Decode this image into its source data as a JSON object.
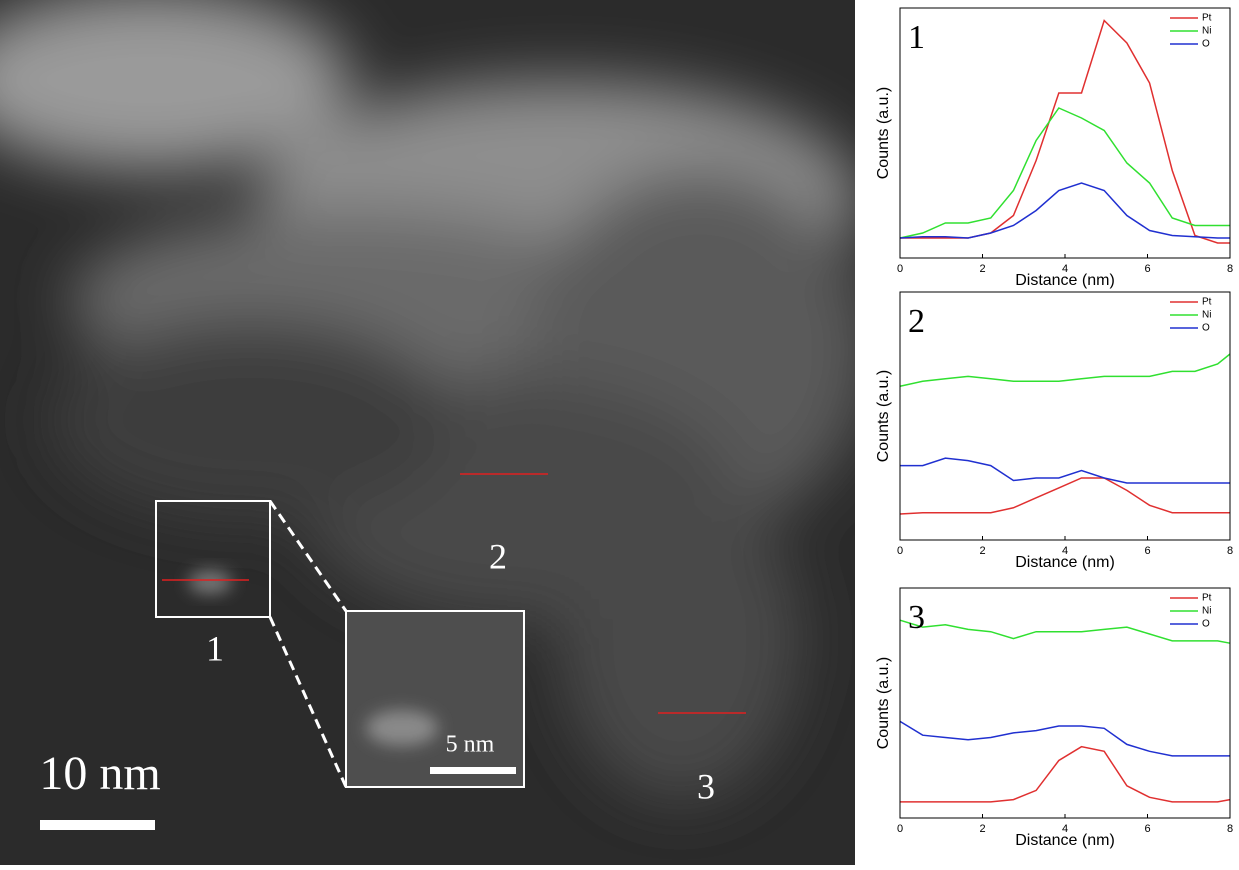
{
  "image": {
    "scale_bar": "10 nm",
    "inset_scale_bar": "5 nm",
    "region_labels": [
      "1",
      "2",
      "3"
    ]
  },
  "chart_data": [
    {
      "type": "line",
      "panel_label": "1",
      "x_label": "Distance (nm)",
      "y_label": "Counts (a.u.)",
      "x": [
        0,
        0.55,
        1.1,
        1.65,
        2.2,
        2.75,
        3.3,
        3.85,
        4.4,
        4.95,
        5.5,
        6.05,
        6.6,
        7.15,
        7.7,
        8
      ],
      "xlim": [
        0,
        8
      ],
      "ylim": [
        0,
        100
      ],
      "xticks": [
        0,
        2,
        4,
        6,
        8
      ],
      "legend": "upper right",
      "series": [
        {
          "name": "Pt",
          "color": "#e03030",
          "values": [
            8,
            8,
            8,
            8,
            10,
            17,
            39,
            66,
            66,
            95,
            86,
            70,
            35,
            9,
            6,
            6
          ]
        },
        {
          "name": "Ni",
          "color": "#30e030",
          "values": [
            8,
            10,
            14,
            14,
            16,
            27,
            47,
            60,
            56,
            51,
            38,
            30,
            16,
            13,
            13,
            13
          ]
        },
        {
          "name": "O",
          "color": "#2030d0",
          "values": [
            8,
            8.5,
            8.5,
            8,
            10,
            13,
            19,
            27,
            30,
            27,
            17,
            11,
            9,
            8.5,
            8,
            8
          ]
        }
      ]
    },
    {
      "type": "line",
      "panel_label": "2",
      "x_label": "Distance (nm)",
      "y_label": "Counts (a.u.)",
      "x": [
        0,
        0.55,
        1.1,
        1.65,
        2.2,
        2.75,
        3.3,
        3.85,
        4.4,
        4.95,
        5.5,
        6.05,
        6.6,
        7.15,
        7.7,
        8
      ],
      "xlim": [
        0,
        8
      ],
      "ylim": [
        0,
        100
      ],
      "xticks": [
        0,
        2,
        4,
        6,
        8
      ],
      "legend": "upper right",
      "series": [
        {
          "name": "Pt",
          "color": "#e03030",
          "values": [
            10.5,
            11,
            11,
            11,
            11,
            13,
            17,
            21,
            25,
            25,
            20,
            14,
            11,
            11,
            11,
            11
          ]
        },
        {
          "name": "Ni",
          "color": "#30e030",
          "values": [
            62,
            64,
            65,
            66,
            65,
            64,
            64,
            64,
            65,
            66,
            66,
            66,
            68,
            68,
            71,
            75
          ]
        },
        {
          "name": "O",
          "color": "#2030d0",
          "values": [
            30,
            30,
            33,
            32,
            30,
            24,
            25,
            25,
            28,
            25,
            23,
            23,
            23,
            23,
            23,
            23
          ]
        }
      ]
    },
    {
      "type": "line",
      "panel_label": "3",
      "x_label": "Distance (nm)",
      "y_label": "Counts (a.u.)",
      "x": [
        0,
        0.55,
        1.1,
        1.65,
        2.2,
        2.75,
        3.3,
        3.85,
        4.4,
        4.95,
        5.5,
        6.05,
        6.6,
        7.15,
        7.7,
        8
      ],
      "xlim": [
        0,
        8
      ],
      "ylim": [
        0,
        100
      ],
      "xticks": [
        0,
        2,
        4,
        6,
        8
      ],
      "legend": "upper right",
      "series": [
        {
          "name": "Pt",
          "color": "#e03030",
          "values": [
            7,
            7,
            7,
            7,
            7,
            8,
            12,
            25,
            31,
            29,
            14,
            9,
            7,
            7,
            7,
            8
          ]
        },
        {
          "name": "Ni",
          "color": "#30e030",
          "values": [
            86,
            83,
            84,
            82,
            81,
            78,
            81,
            81,
            81,
            82,
            83,
            80,
            77,
            77,
            77,
            76
          ]
        },
        {
          "name": "O",
          "color": "#2030d0",
          "values": [
            42,
            36,
            35,
            34,
            35,
            37,
            38,
            40,
            40,
            39,
            32,
            29,
            27,
            27,
            27,
            27
          ]
        }
      ]
    }
  ]
}
